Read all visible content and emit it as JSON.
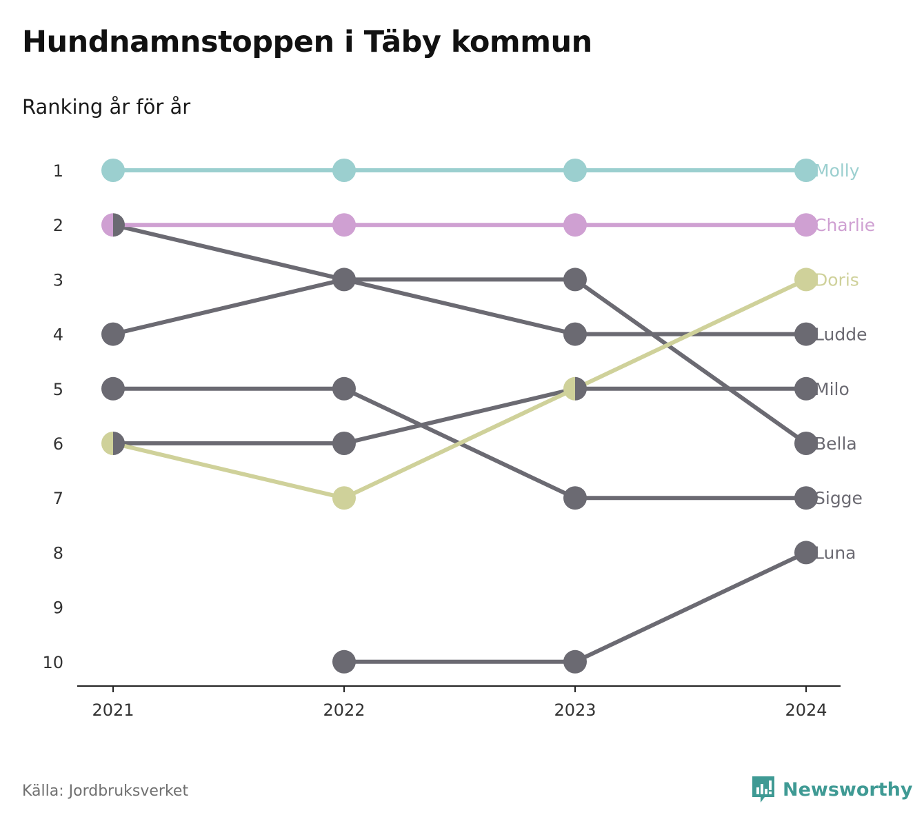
{
  "title": "Hundnamnstoppen i Täby kommun",
  "subtitle": "Ranking år för år",
  "source": "Källa: Jordbruksverket",
  "brand": {
    "name": "Newsworthy",
    "icon": "newsworthy-logo-icon",
    "color": "#3f9a94"
  },
  "chart_data": {
    "type": "line",
    "title": "Hundnamnstoppen i Täby kommun",
    "subtitle": "Ranking år för år",
    "xlabel": "",
    "ylabel": "",
    "x": [
      "2021",
      "2022",
      "2023",
      "2024"
    ],
    "y_ticks": [
      1,
      2,
      3,
      4,
      5,
      6,
      7,
      8,
      9,
      10
    ],
    "ylim": [
      1,
      10
    ],
    "y_inverted": true,
    "grid": false,
    "series": [
      {
        "name": "Molly",
        "color": "#9bcfcf",
        "values": [
          1,
          1,
          1,
          1
        ]
      },
      {
        "name": "Charlie",
        "color": "#cfa0d2",
        "values": [
          2,
          2,
          2,
          2
        ]
      },
      {
        "name": "Doris",
        "color": "#cfd19a",
        "values": [
          6,
          7,
          5,
          3
        ]
      },
      {
        "name": "Ludde",
        "color": "#6b6a72",
        "values": [
          2,
          3,
          4,
          4
        ]
      },
      {
        "name": "Milo",
        "color": "#6b6a72",
        "values": [
          6,
          6,
          5,
          5
        ]
      },
      {
        "name": "Bella",
        "color": "#6b6a72",
        "values": [
          4,
          3,
          3,
          6
        ]
      },
      {
        "name": "Sigge",
        "color": "#6b6a72",
        "values": [
          5,
          5,
          7,
          7
        ]
      },
      {
        "name": "Luna",
        "color": "#6b6a72",
        "values": [
          null,
          10,
          10,
          8
        ]
      }
    ]
  }
}
